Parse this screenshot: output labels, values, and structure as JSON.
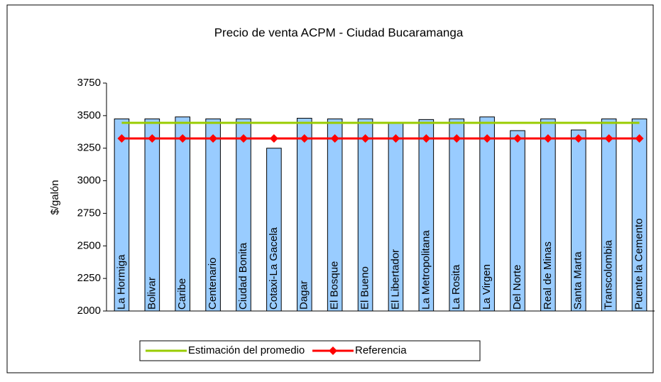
{
  "chart_data": {
    "type": "bar",
    "title": "Precio de venta ACPM - Ciudad Bucaramanga",
    "y_label": "$/galón",
    "categories": [
      "La Hormiga",
      "Bolivar",
      "Caribe",
      "Centenario",
      "Ciudad Bonita",
      "Cotaxi-La Gacela",
      "Dagar",
      "El Bosque",
      "El Bueno",
      "El Libertador",
      "La Metropolitana",
      "La Rosita",
      "La Virgen",
      "Del Norte",
      "Real de Minas",
      "Santa Marta",
      "Transcolombia",
      "Puente la Cemento"
    ],
    "values": [
      3475,
      3475,
      3490,
      3475,
      3475,
      3250,
      3480,
      3475,
      3475,
      3450,
      3470,
      3475,
      3490,
      3385,
      3475,
      3390,
      3475,
      3475
    ],
    "color": "#99ccff",
    "lines": [
      {
        "name": "Estimación del promedio",
        "color": "#99cc00",
        "values": [
          3445,
          3445,
          3445,
          3445,
          3445,
          3445,
          3445,
          3445,
          3445,
          3445,
          3445,
          3445,
          3445,
          3445,
          3445,
          3445,
          3445,
          3445
        ]
      },
      {
        "name": "Referencia",
        "color": "#ff0000",
        "values": [
          3325,
          3325,
          3325,
          3325,
          3325,
          3325,
          3325,
          3325,
          3325,
          3325,
          3325,
          3325,
          3325,
          3325,
          3325,
          3325,
          3325,
          3325
        ]
      }
    ],
    "ylim": [
      2000,
      3750
    ],
    "yticks": [
      2000,
      2250,
      2500,
      2750,
      3000,
      3250,
      3500,
      3750
    ],
    "grid": false
  }
}
